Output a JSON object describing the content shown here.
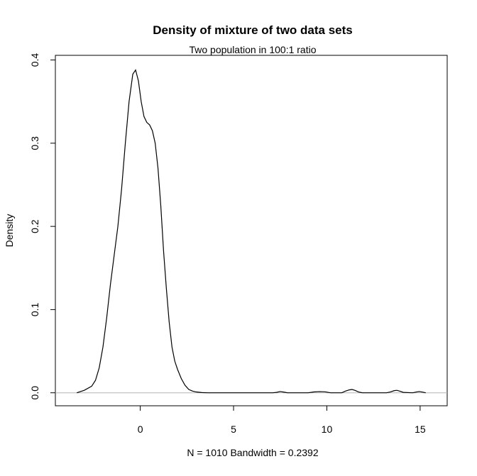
{
  "chart_data": {
    "type": "line",
    "title": "Density of mixture of two data sets",
    "subtitle": "Two population in 100:1 ratio",
    "xlabel": "N = 1010   Bandwidth = 0.2392",
    "ylabel": "Density",
    "xlim": [
      -4.55,
      16.45
    ],
    "ylim": [
      -0.0156,
      0.4056
    ],
    "x_ticks": [
      0,
      5,
      10,
      15
    ],
    "y_ticks": [
      0.0,
      0.1,
      0.2,
      0.3,
      0.4
    ],
    "x_tick_labels": [
      "0",
      "5",
      "10",
      "15"
    ],
    "y_tick_labels": [
      "0.0",
      "0.1",
      "0.2",
      "0.3",
      "0.4"
    ],
    "baseline": 0,
    "grid": false,
    "series": [
      {
        "x": [
          -3.4,
          -3.0,
          -2.6,
          -2.4,
          -2.2,
          -2.0,
          -1.8,
          -1.6,
          -1.4,
          -1.2,
          -1.0,
          -0.8,
          -0.6,
          -0.4,
          -0.25,
          -0.1,
          0.05,
          0.2,
          0.35,
          0.5,
          0.65,
          0.8,
          0.95,
          1.1,
          1.25,
          1.4,
          1.55,
          1.7,
          1.85,
          2.0,
          2.2,
          2.4,
          2.6,
          2.8,
          3.0,
          3.3,
          3.6,
          3.8,
          4.0,
          7.1,
          7.3,
          7.5,
          7.7,
          7.9,
          9.0,
          9.3,
          9.6,
          9.9,
          10.2,
          10.8,
          11.0,
          11.2,
          11.35,
          11.5,
          11.7,
          11.9,
          13.2,
          13.4,
          13.6,
          13.75,
          13.9,
          14.1,
          14.6,
          14.8,
          14.95,
          15.1,
          15.3
        ],
        "y": [
          0.0,
          0.003,
          0.008,
          0.015,
          0.03,
          0.055,
          0.09,
          0.13,
          0.165,
          0.2,
          0.245,
          0.3,
          0.35,
          0.383,
          0.388,
          0.375,
          0.35,
          0.332,
          0.325,
          0.322,
          0.315,
          0.3,
          0.27,
          0.225,
          0.17,
          0.125,
          0.085,
          0.055,
          0.038,
          0.028,
          0.017,
          0.009,
          0.004,
          0.002,
          0.001,
          0.0003,
          0.0,
          0.0,
          0.0,
          0.0,
          0.0005,
          0.0015,
          0.0008,
          0.0,
          0.0,
          0.001,
          0.0014,
          0.0012,
          0.0,
          0.0,
          0.002,
          0.0035,
          0.004,
          0.003,
          0.001,
          0.0,
          0.0,
          0.001,
          0.0025,
          0.003,
          0.002,
          0.0005,
          0.0,
          0.001,
          0.0015,
          0.001,
          0.0
        ]
      }
    ]
  }
}
